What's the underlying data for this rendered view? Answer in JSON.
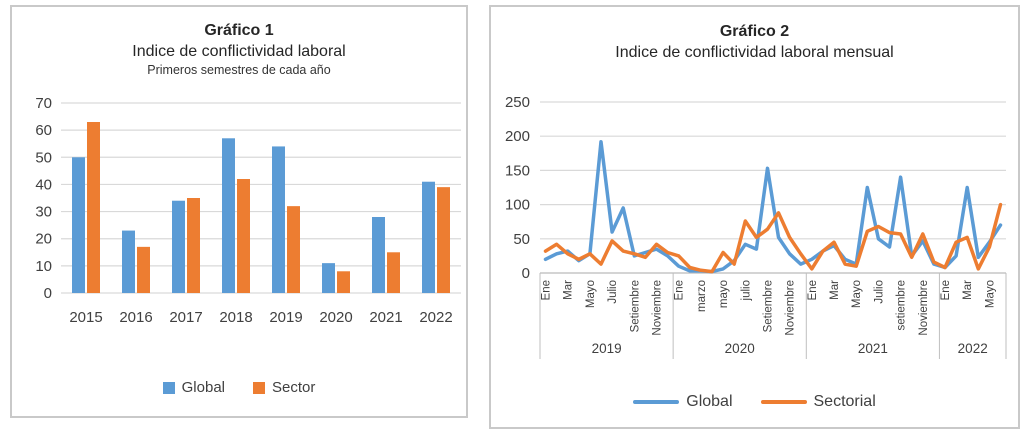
{
  "chart1": {
    "title": "Gráfico 1",
    "subtitle": "Indice de conflictividad laboral",
    "subtitle2": "Primeros semestres de cada año",
    "legend": [
      {
        "label": "Global",
        "color": "#5B9BD5"
      },
      {
        "label": "Sector",
        "color": "#ED7D31"
      }
    ]
  },
  "chart2": {
    "title": "Gráfico 2",
    "subtitle": "Indice de conflictividad laboral mensual",
    "legend": [
      {
        "label": "Global",
        "color": "#5B9BD5"
      },
      {
        "label": "Sectorial",
        "color": "#ED7D31"
      }
    ]
  },
  "chart_data": [
    {
      "type": "bar",
      "title": "Gráfico 1 - Indice de conflictividad laboral - Primeros semestres de cada año",
      "categories": [
        "2015",
        "2016",
        "2017",
        "2018",
        "2019",
        "2020",
        "2021",
        "2022"
      ],
      "series": [
        {
          "name": "Global",
          "color": "#5B9BD5",
          "values": [
            50,
            23,
            34,
            57,
            54,
            11,
            28,
            41
          ]
        },
        {
          "name": "Sector",
          "color": "#ED7D31",
          "values": [
            63,
            17,
            35,
            42,
            32,
            8,
            15,
            39
          ]
        }
      ],
      "xlabel": "",
      "ylabel": "",
      "ylim": [
        0,
        70
      ],
      "ytick_step": 10,
      "grid": true,
      "legend_position": "bottom"
    },
    {
      "type": "line",
      "title": "Gráfico 2 - Indice de conflictividad laboral mensual",
      "x_groups": [
        {
          "year": "2019",
          "n_months": 12,
          "months_shown": [
            "Ene",
            "Mar",
            "Mayo",
            "Julio",
            "Setiembre",
            "Noviembre"
          ]
        },
        {
          "year": "2020",
          "n_months": 12,
          "months_shown": [
            "Ene",
            "marzo",
            "mayo",
            "julio",
            "Setiembre",
            "Noviembre"
          ]
        },
        {
          "year": "2021",
          "n_months": 12,
          "months_shown": [
            "Ene",
            "Mar",
            "Mayo",
            "Julio",
            "setiembre",
            "Noviembre"
          ]
        },
        {
          "year": "2022",
          "n_months": 6,
          "months_shown": [
            "Ene",
            "Mar",
            "Mayo"
          ]
        }
      ],
      "series": [
        {
          "name": "Global",
          "color": "#5B9BD5",
          "values": [
            20,
            28,
            32,
            18,
            28,
            192,
            60,
            95,
            25,
            30,
            35,
            25,
            10,
            3,
            3,
            2,
            6,
            18,
            42,
            35,
            153,
            52,
            28,
            13,
            20,
            32,
            40,
            20,
            13,
            125,
            50,
            38,
            140,
            25,
            47,
            13,
            8,
            25,
            125,
            23,
            45,
            70
          ]
        },
        {
          "name": "Sectorial",
          "color": "#ED7D31",
          "values": [
            32,
            42,
            28,
            20,
            28,
            13,
            47,
            32,
            28,
            23,
            42,
            30,
            25,
            8,
            4,
            2,
            30,
            13,
            76,
            52,
            64,
            88,
            52,
            28,
            6,
            32,
            45,
            13,
            10,
            61,
            68,
            59,
            57,
            23,
            57,
            16,
            8,
            45,
            52,
            6,
            38,
            100
          ]
        }
      ],
      "xlabel": "",
      "ylabel": "",
      "ylim": [
        0,
        250
      ],
      "ytick_step": 50,
      "grid": true,
      "legend_position": "bottom"
    }
  ]
}
